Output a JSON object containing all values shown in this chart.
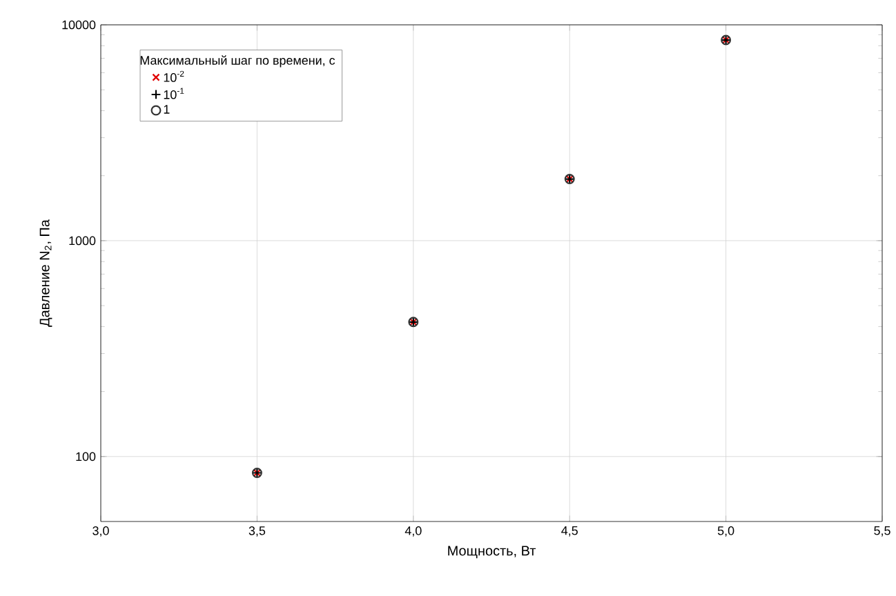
{
  "chart_data": {
    "type": "scatter",
    "xlabel": "Мощность, Вт",
    "ylabel": "Давление N$_{2}$, Па",
    "legend_title": "Максимальный шаг по времени, с",
    "x": [
      3.5,
      4.0,
      4.5,
      5.0
    ],
    "series": [
      {
        "name": "10$^{-2}$",
        "color": "#e00000",
        "marker": "cross",
        "values": [
          84,
          420,
          1930,
          8500
        ]
      },
      {
        "name": "10$^{-1}$",
        "color": "#000000",
        "marker": "plus",
        "values": [
          84,
          420,
          1930,
          8500
        ]
      },
      {
        "name": "1",
        "color": "#333333",
        "marker": "circle",
        "values": [
          84,
          420,
          1930,
          8500
        ]
      }
    ],
    "log": "y",
    "xlim": [
      3.0,
      5.5
    ],
    "xticks": [
      {
        "value": 3.0,
        "label": "3,0"
      },
      {
        "value": 3.5,
        "label": "3,5"
      },
      {
        "value": 4.0,
        "label": "4,0"
      },
      {
        "value": 4.5,
        "label": "4,5"
      },
      {
        "value": 5.0,
        "label": "5,0"
      },
      {
        "value": 5.5,
        "label": "5,5"
      }
    ],
    "ylim": [
      50,
      10000
    ],
    "yticks": [
      100,
      1000,
      10000
    ],
    "grid": true,
    "legend": "top left"
  }
}
